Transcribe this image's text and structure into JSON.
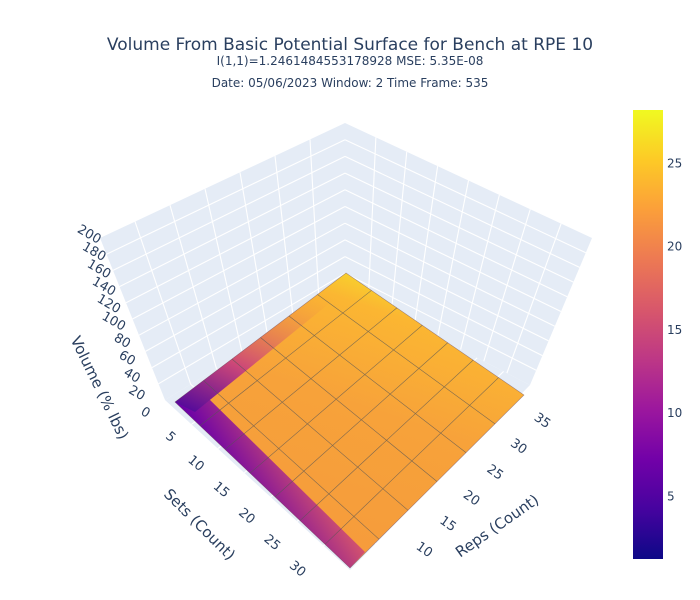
{
  "chart_data": {
    "type": "surface",
    "title": "Volume From Basic Potential Surface for Bench at RPE 10",
    "subtitle_line1": "I(1,1)=1.2461484553178928  MSE: 5.35E-08",
    "subtitle_line2": "Date: 05/06/2023  Window: 2  Time Frame: 535",
    "x_axis": {
      "label": "Sets (Count)",
      "ticks": [
        "5",
        "10",
        "15",
        "20",
        "25",
        "30"
      ],
      "range": [
        1,
        30
      ]
    },
    "y_axis": {
      "label": "Reps (Count)",
      "ticks": [
        "10",
        "15",
        "20",
        "25",
        "30",
        "35"
      ],
      "range": [
        1,
        35
      ]
    },
    "z_axis": {
      "label": "Volume (% lbs)",
      "ticks": [
        "0",
        "20",
        "40",
        "60",
        "80",
        "100",
        "120",
        "140",
        "160",
        "180",
        "200"
      ],
      "range": [
        0,
        200
      ]
    },
    "colorbar": {
      "ticks": [
        "5",
        "10",
        "15",
        "20",
        "25"
      ],
      "range": [
        1.25,
        28.2
      ],
      "colorscale": [
        "#0d0887",
        "#46039f",
        "#7201a8",
        "#9c179e",
        "#bd3786",
        "#d8576b",
        "#ed7953",
        "#fb9f3a",
        "#fdca26",
        "#f0f921"
      ]
    },
    "surface_samples": [
      {
        "sets": 1,
        "reps": 1,
        "volume": 1.25
      },
      {
        "sets": 5,
        "reps": 5,
        "volume": 20.4
      },
      {
        "sets": 10,
        "reps": 10,
        "volume": 22.1
      },
      {
        "sets": 20,
        "reps": 20,
        "volume": 23.0
      },
      {
        "sets": 30,
        "reps": 35,
        "volume": 23.4
      },
      {
        "sets": 1,
        "reps": 35,
        "volume": 28.2
      }
    ],
    "grid": true,
    "legend": "colorbar-right"
  }
}
